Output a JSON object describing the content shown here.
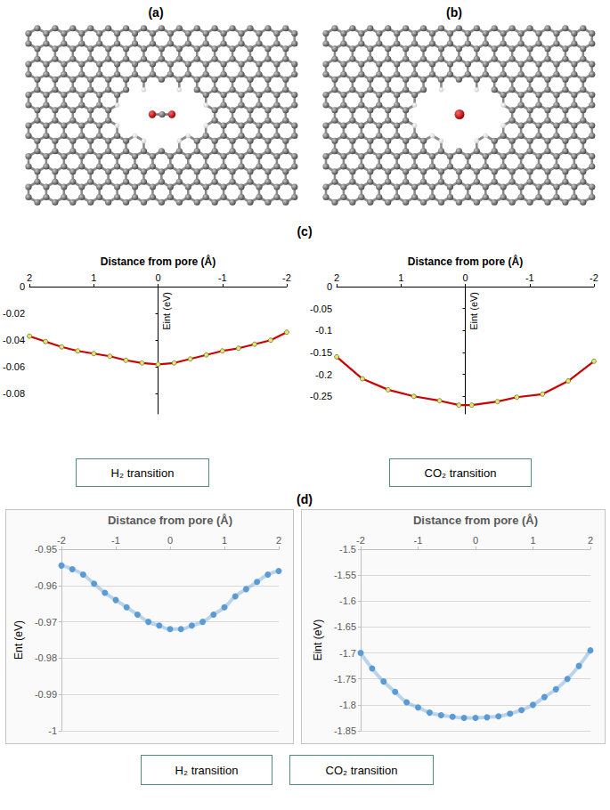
{
  "panel_labels": [
    "(a)",
    "(b)",
    "(c)",
    "(d)"
  ],
  "chart_data": [
    {
      "type": "line",
      "xlabel": "Distance from pore (Å)",
      "ylabel": "Eint (eV)",
      "annotation": "H₂ transition",
      "xlim": [
        2,
        -2
      ],
      "xticks": [
        2,
        1,
        0,
        -1,
        -2
      ],
      "ylim": [
        -0.095,
        0
      ],
      "yticks": [
        0,
        -0.02,
        -0.04,
        -0.06,
        -0.08
      ],
      "grid": false,
      "marker": "circle",
      "line_style": "solid",
      "color": "#cc0000",
      "x": [
        2,
        1.75,
        1.5,
        1.25,
        1,
        0.75,
        0.5,
        0.25,
        0,
        -0.25,
        -0.5,
        -0.75,
        -1,
        -1.25,
        -1.5,
        -1.75,
        -2
      ],
      "values": [
        -0.037,
        -0.041,
        -0.045,
        -0.048,
        -0.05,
        -0.052,
        -0.055,
        -0.057,
        -0.058,
        -0.057,
        -0.054,
        -0.051,
        -0.048,
        -0.046,
        -0.043,
        -0.04,
        -0.034
      ]
    },
    {
      "type": "line",
      "xlabel": "Distance from pore (Å)",
      "ylabel": "Eint (eV)",
      "annotation": "CO₂ transition",
      "xlim": [
        2,
        -2
      ],
      "xticks": [
        2,
        1,
        0,
        -1,
        -2
      ],
      "ylim": [
        -0.29,
        0
      ],
      "yticks": [
        0,
        -0.05,
        -0.1,
        -0.15,
        -0.2,
        -0.25
      ],
      "grid": false,
      "marker": "circle",
      "line_style": "solid",
      "color": "#cc0000",
      "x": [
        2,
        1.6,
        1.2,
        0.8,
        0.4,
        0.1,
        -0.1,
        -0.5,
        -0.8,
        -1.2,
        -1.6,
        -2
      ],
      "values": [
        -0.16,
        -0.21,
        -0.235,
        -0.25,
        -0.26,
        -0.27,
        -0.27,
        -0.262,
        -0.252,
        -0.245,
        -0.215,
        -0.17
      ]
    },
    {
      "type": "line",
      "xlabel": "Distance from pore (Å)",
      "ylabel": "Ent (eV)",
      "annotation": "H₂ transition",
      "xlim": [
        -2,
        2
      ],
      "xticks": [
        -2,
        -1,
        0,
        1,
        2
      ],
      "ylim": [
        -1,
        -0.95
      ],
      "yticks": [
        -1,
        -0.99,
        -0.98,
        -0.97,
        -0.96,
        -0.95
      ],
      "grid": true,
      "marker": "circle",
      "line_style": "smooth",
      "color": "#5b9bd5",
      "x": [
        -2,
        -1.8,
        -1.6,
        -1.4,
        -1.2,
        -1,
        -0.8,
        -0.6,
        -0.4,
        -0.2,
        0,
        0.2,
        0.4,
        0.6,
        0.8,
        1,
        1.2,
        1.4,
        1.6,
        1.8,
        2
      ],
      "values": [
        -0.9545,
        -0.9555,
        -0.957,
        -0.9595,
        -0.962,
        -0.964,
        -0.966,
        -0.968,
        -0.97,
        -0.971,
        -0.972,
        -0.972,
        -0.971,
        -0.97,
        -0.968,
        -0.966,
        -0.963,
        -0.961,
        -0.959,
        -0.957,
        -0.956
      ]
    },
    {
      "type": "line",
      "xlabel": "Distance from pore (Å)",
      "ylabel": "Eint (eV)",
      "annotation": "CO₂ transition",
      "xlim": [
        -2,
        2
      ],
      "xticks": [
        -2,
        -1,
        0,
        1,
        2
      ],
      "ylim": [
        -1.85,
        -1.5
      ],
      "yticks": [
        -1.85,
        -1.8,
        -1.75,
        -1.7,
        -1.65,
        -1.6,
        -1.55,
        -1.5
      ],
      "grid": true,
      "marker": "circle",
      "line_style": "smooth",
      "color": "#5b9bd5",
      "x": [
        -2,
        -1.8,
        -1.6,
        -1.4,
        -1.2,
        -1,
        -0.8,
        -0.6,
        -0.4,
        -0.2,
        0,
        0.2,
        0.4,
        0.6,
        0.8,
        1,
        1.2,
        1.4,
        1.6,
        1.8,
        2
      ],
      "values": [
        -1.7,
        -1.73,
        -1.755,
        -1.775,
        -1.795,
        -1.805,
        -1.815,
        -1.82,
        -1.823,
        -1.825,
        -1.825,
        -1.824,
        -1.822,
        -1.817,
        -1.81,
        -1.8,
        -1.785,
        -1.77,
        -1.75,
        -1.725,
        -1.695
      ]
    }
  ]
}
